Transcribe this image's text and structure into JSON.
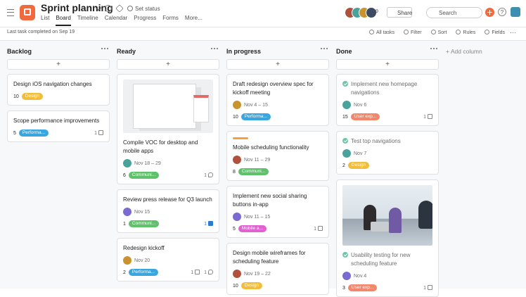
{
  "header": {
    "title": "Sprint planning",
    "set_status": "Set status",
    "tabs": [
      "List",
      "Board",
      "Timeline",
      "Calendar",
      "Progress",
      "Forms",
      "More..."
    ],
    "active_tab": 1,
    "member_count": "9",
    "share": "Share",
    "search": "Search",
    "help": "?"
  },
  "toolbar": {
    "status": "Last task completed on Sep 19",
    "actions": [
      "All tasks",
      "Filter",
      "Sort",
      "Rules",
      "Fields"
    ]
  },
  "add_column": "+ Add column",
  "add_card": "+",
  "columns": [
    {
      "title": "Backlog",
      "cards": [
        {
          "title": "Design iOS navigation changes",
          "count": "10",
          "tag": "Design",
          "tag_color": "#f1bd3c"
        },
        {
          "title": "Scope performance improvements",
          "count": "5",
          "tag": "Performa...",
          "tag_color": "#3aa6e0",
          "likes": "1"
        }
      ]
    },
    {
      "title": "Ready",
      "cards": [
        {
          "cover": "screenshot",
          "title": "Compile VOC for desktop and mobile apps",
          "date": "Nov 18 – 29",
          "avatar_color": "#4aa39a",
          "count": "6",
          "tag": "Communi...",
          "tag_color": "#5fc16a",
          "comments": "1"
        },
        {
          "title": "Review press release for Q3 launch",
          "date": "Nov 15",
          "avatar_color": "#7a6bd1",
          "count": "1",
          "tag": "Communi...",
          "tag_color": "#5fc16a",
          "likes": "1",
          "liked": true
        },
        {
          "title": "Redesign kickoff",
          "date": "Nov 20",
          "avatar_color": "#c9932e",
          "count": "2",
          "tag": "Performa...",
          "tag_color": "#3aa6e0",
          "likes": "1",
          "comments": "1"
        }
      ]
    },
    {
      "title": "In progress",
      "cards": [
        {
          "title": "Draft redesign overview spec for kickoff meeting",
          "date": "Nov 4 – 15",
          "avatar_color": "#c9932e",
          "count": "10",
          "tag": "Performa...",
          "tag_color": "#3aa6e0"
        },
        {
          "accent": "#f5a03c",
          "title": "Mobile scheduling functionality",
          "date": "Nov 11 – 29",
          "avatar_color": "#b0513d",
          "count": "8",
          "tag": "Communi...",
          "tag_color": "#5fc16a"
        },
        {
          "title": "Implement new social sharing buttons in-app",
          "date": "Nov 11 – 15",
          "avatar_color": "#7a6bd1",
          "count": "5",
          "tag": "Mobile a...",
          "tag_color": "#df62d0",
          "subtasks": "1"
        },
        {
          "title": "Design mobile wireframes for scheduling feature",
          "date": "Nov 19 – 22",
          "avatar_color": "#b0513d",
          "count": "10",
          "tag": "Design",
          "tag_color": "#f1bd3c"
        }
      ]
    },
    {
      "title": "Done",
      "cards": [
        {
          "completed": true,
          "title": "Implement new homepage navigations",
          "date": "Nov 6",
          "avatar_color": "#4aa39a",
          "count": "15",
          "tag": "User exp...",
          "tag_color": "#f2876b",
          "likes": "1"
        },
        {
          "completed": true,
          "title": "Test top navigations",
          "date": "Nov 7",
          "avatar_color": "#4aa39a",
          "count": "2",
          "tag": "Design",
          "tag_color": "#f1bd3c"
        },
        {
          "cover": "photo",
          "completed": true,
          "title": "Usability testing for new scheduling feature",
          "date": "Nov 4",
          "avatar_color": "#7a6bd1",
          "count": "3",
          "tag": "User exp...",
          "tag_color": "#f2876b",
          "likes": "1"
        }
      ]
    }
  ]
}
